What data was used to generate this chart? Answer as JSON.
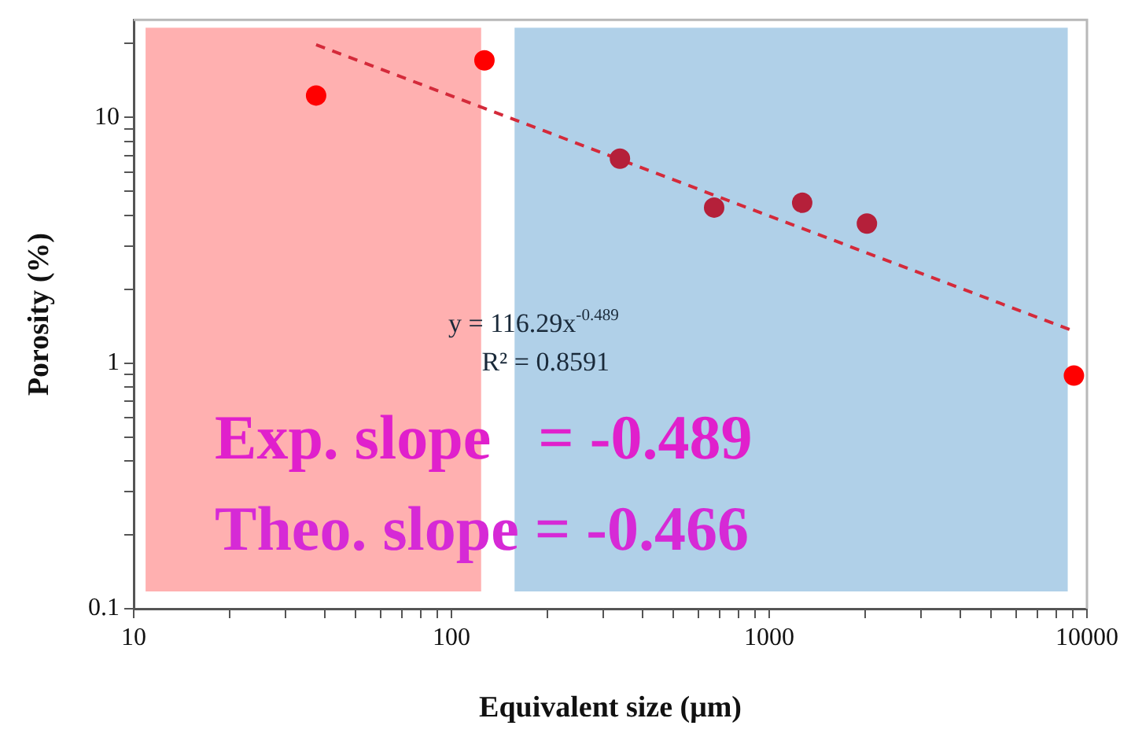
{
  "chart_data": {
    "type": "scatter",
    "xlabel": "Equivalent size (μm)",
    "ylabel": "Porosity (%)",
    "log": "xy",
    "grid": false,
    "legend": false,
    "marker": "circle",
    "xlim": [
      10,
      10000
    ],
    "ylim": [
      0.1,
      25
    ],
    "xticks": [
      10,
      {
        "value": 20,
        "label": null
      },
      {
        "value": 30,
        "label": null
      },
      {
        "value": 40,
        "label": null
      },
      {
        "value": 50,
        "label": null
      },
      {
        "value": 60,
        "label": null
      },
      {
        "value": 70,
        "label": null
      },
      {
        "value": 80,
        "label": null
      },
      {
        "value": 90,
        "label": null
      },
      100,
      {
        "value": 200,
        "label": null
      },
      {
        "value": 300,
        "label": null
      },
      {
        "value": 400,
        "label": null
      },
      {
        "value": 500,
        "label": null
      },
      {
        "value": 600,
        "label": null
      },
      {
        "value": 700,
        "label": null
      },
      {
        "value": 800,
        "label": null
      },
      {
        "value": 900,
        "label": null
      },
      1000,
      {
        "value": 2000,
        "label": null
      },
      {
        "value": 3000,
        "label": null
      },
      {
        "value": 4000,
        "label": null
      },
      {
        "value": 5000,
        "label": null
      },
      {
        "value": 6000,
        "label": null
      },
      {
        "value": 7000,
        "label": null
      },
      {
        "value": 8000,
        "label": null
      },
      {
        "value": 9000,
        "label": null
      },
      10000
    ],
    "yticks": [
      0.1,
      {
        "value": 0.2,
        "label": null
      },
      {
        "value": 0.3,
        "label": null
      },
      {
        "value": 0.4,
        "label": null
      },
      {
        "value": 0.5,
        "label": null
      },
      {
        "value": 0.6,
        "label": null
      },
      {
        "value": 0.7,
        "label": null
      },
      {
        "value": 0.8,
        "label": null
      },
      {
        "value": 0.9,
        "label": null
      },
      1,
      {
        "value": 2,
        "label": null
      },
      {
        "value": 3,
        "label": null
      },
      {
        "value": 4,
        "label": null
      },
      {
        "value": 5,
        "label": null
      },
      {
        "value": 6,
        "label": null
      },
      {
        "value": 7,
        "label": null
      },
      {
        "value": 8,
        "label": null
      },
      {
        "value": 9,
        "label": null
      },
      10,
      {
        "value": 20,
        "label": null
      }
    ],
    "series": [
      {
        "x": [
          37.5,
          127,
          339,
          671,
          1270,
          2030,
          9100
        ],
        "values": [
          12.3,
          17.1,
          6.8,
          4.3,
          4.5,
          3.7,
          0.89
        ],
        "colors": [
          "#ff0000",
          "#ff0000",
          "#b5203a",
          "#b5203a",
          "#b5203a",
          "#b5203a",
          "#ff0000"
        ]
      },
      {
        "type": "line",
        "x": [
          37.5,
          9100
        ],
        "values": [
          19.8,
          1.35
        ],
        "color": "#d42a3a",
        "line_style": "dashed",
        "marker": "none"
      }
    ],
    "bands": [
      {
        "axis": "x",
        "from": 10.9,
        "to": 124,
        "color": "#ffb0b0"
      },
      {
        "axis": "x",
        "from": 158,
        "to": 8700,
        "color": "#b0d0e8"
      }
    ],
    "annotations": [
      "y = 116.29x$^{-0.489}$",
      "R² = 0.8591",
      "Exp. slope   = -0.489",
      "Theo. slope = -0.466"
    ]
  }
}
